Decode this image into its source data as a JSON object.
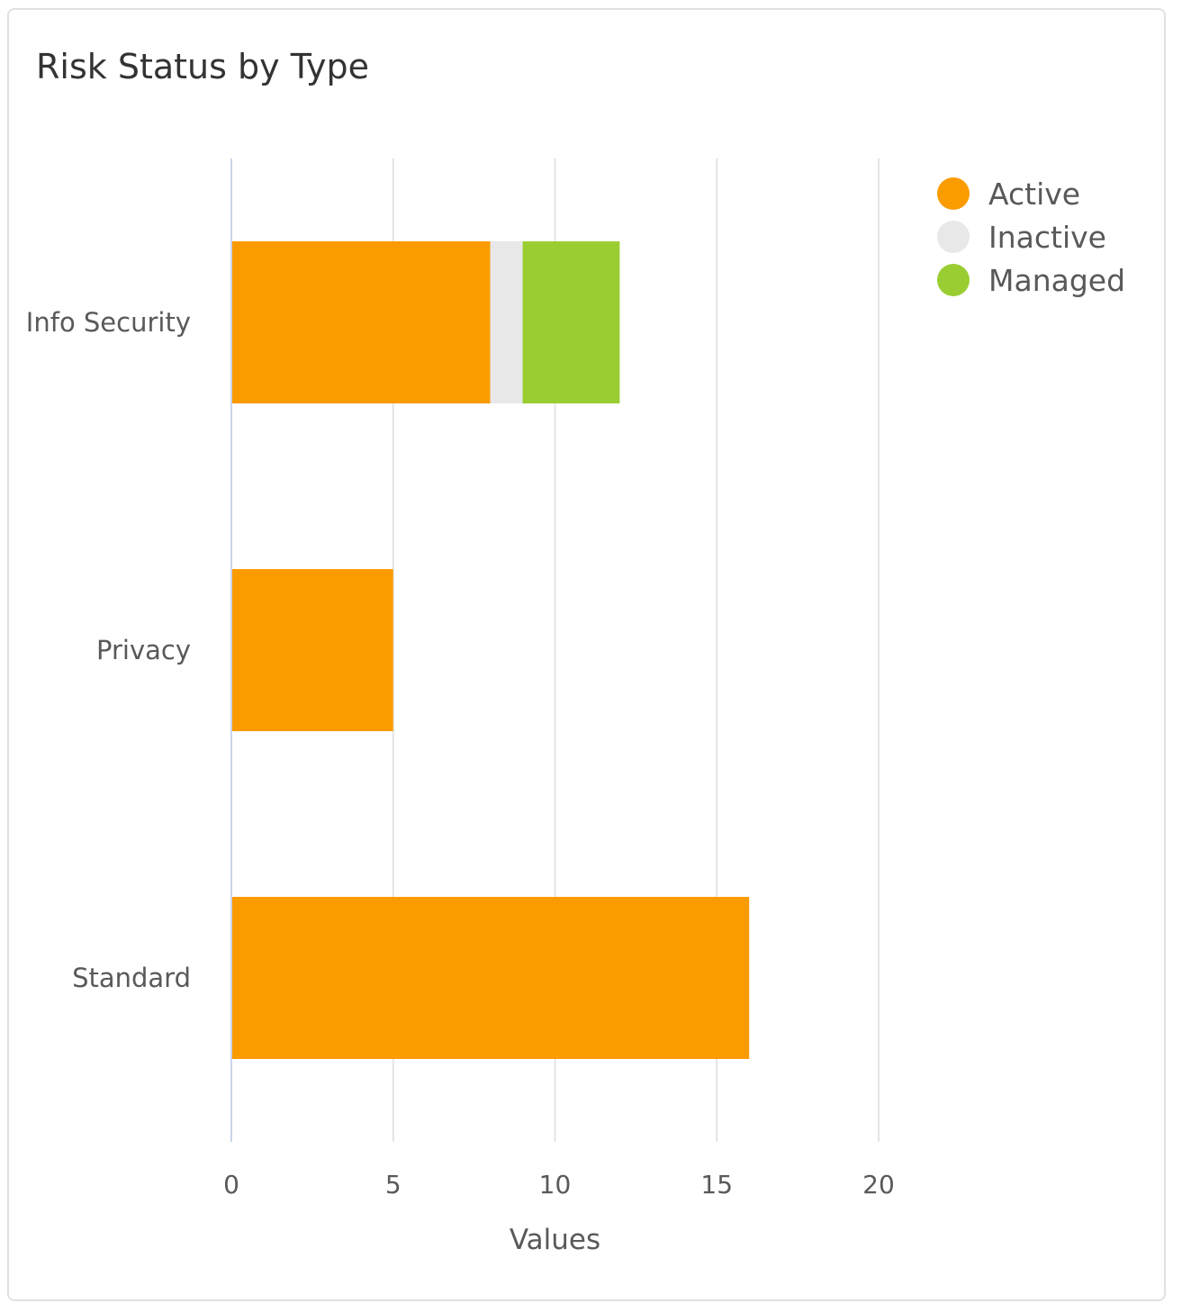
{
  "chart_data": {
    "type": "bar",
    "orientation": "horizontal",
    "stacked": true,
    "title": "Risk Status by Type",
    "xlabel": "Values",
    "ylabel": "",
    "xlim": [
      0,
      20
    ],
    "xticks": [
      "0",
      "5",
      "10",
      "15",
      "20"
    ],
    "categories": [
      "Info Security",
      "Privacy",
      "Standard"
    ],
    "series": [
      {
        "name": "Active",
        "color": "#fa9b00",
        "values": [
          8,
          5,
          16
        ]
      },
      {
        "name": "Inactive",
        "color": "#e8e8e8",
        "values": [
          1,
          0,
          0
        ]
      },
      {
        "name": "Managed",
        "color": "#9acd32",
        "values": [
          3,
          0,
          0
        ]
      }
    ],
    "grid": true,
    "legend_position": "top-right"
  }
}
